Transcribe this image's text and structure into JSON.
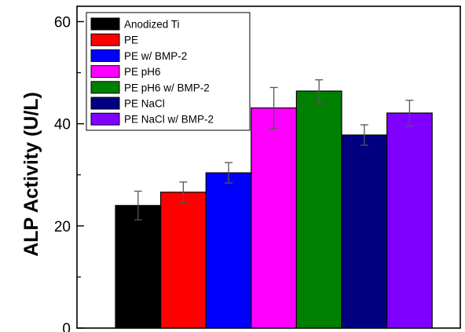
{
  "chart_data": {
    "type": "bar",
    "title": "",
    "xlabel": "",
    "ylabel": "ALP Activity (U/L)",
    "ylim": [
      0,
      63
    ],
    "yticks": [
      0,
      20,
      40,
      60
    ],
    "grid": false,
    "legend_position": "top-left",
    "series": [
      {
        "name": "Anodized Ti",
        "value": 24.0,
        "error": 2.8,
        "color": "#000000"
      },
      {
        "name": "PE",
        "value": 26.6,
        "error": 2.0,
        "color": "#ff0000"
      },
      {
        "name": "PE w/ BMP-2",
        "value": 30.4,
        "error": 2.0,
        "color": "#0000ff"
      },
      {
        "name": "PE pH6",
        "value": 43.1,
        "error": 4.0,
        "color": "#ff00ff"
      },
      {
        "name": "PE pH6 w/ BMP-2",
        "value": 46.4,
        "error": 2.2,
        "color": "#008000"
      },
      {
        "name": "PE NaCl",
        "value": 37.8,
        "error": 2.0,
        "color": "#000080"
      },
      {
        "name": "PE NaCl w/ BMP-2",
        "value": 42.1,
        "error": 2.5,
        "color": "#8000ff"
      }
    ]
  }
}
